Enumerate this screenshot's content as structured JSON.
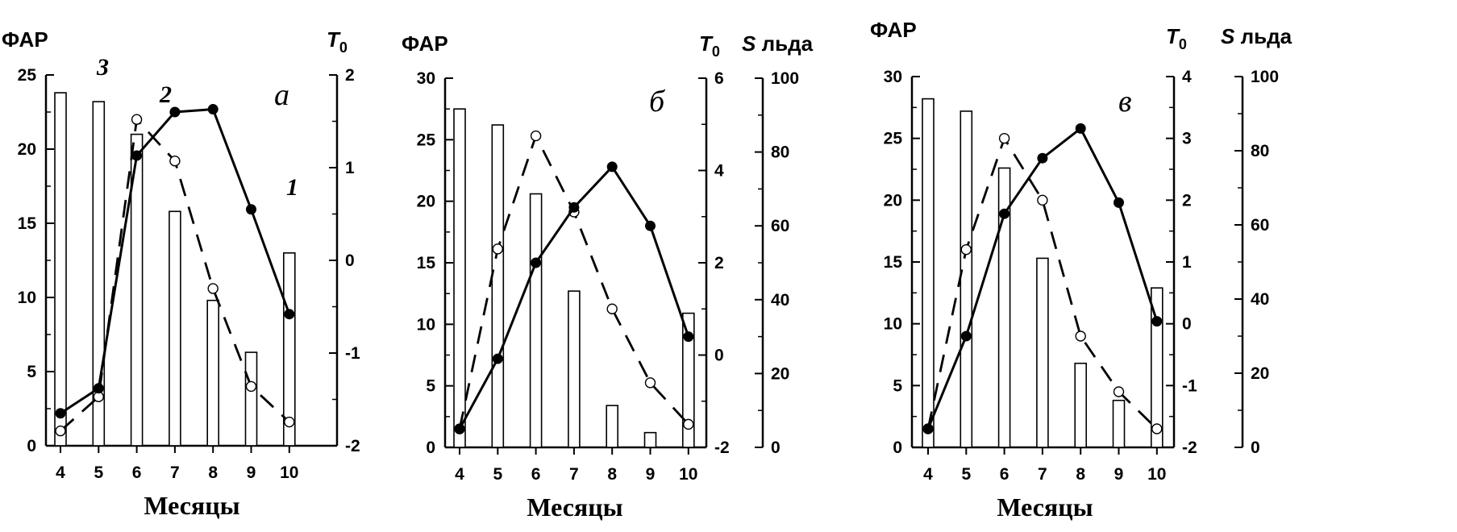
{
  "chart_data": [
    {
      "type": "bar",
      "panel_label": "а",
      "annotations": [
        "3",
        "2",
        "1"
      ],
      "categories": [
        "4",
        "5",
        "6",
        "7",
        "8",
        "9",
        "10"
      ],
      "xlabel": "Месяцы",
      "left_axis": {
        "label": "ФАР",
        "ylim": [
          0,
          25
        ],
        "ticks": [
          "0",
          "5",
          "10",
          "15",
          "20",
          "25"
        ]
      },
      "right_axes": [
        {
          "label": "T",
          "label_sub": "0",
          "ylim": [
            -2,
            2
          ],
          "ticks": [
            "-2",
            "-1",
            "0",
            "1",
            "2"
          ]
        }
      ],
      "series": [
        {
          "style": "bars",
          "axis": "left",
          "values": [
            23.8,
            23.2,
            21.0,
            15.8,
            9.8,
            6.3,
            13.0
          ]
        },
        {
          "style": "dashed-open-circles",
          "axis": "left",
          "values": [
            1.0,
            3.3,
            22.0,
            19.2,
            10.6,
            4.0,
            1.6
          ]
        },
        {
          "style": "solid-filled-circles",
          "axis": "right1",
          "values": [
            -1.65,
            -1.38,
            1.13,
            1.6,
            1.63,
            0.55,
            -0.58
          ]
        }
      ]
    },
    {
      "type": "bar",
      "panel_label": "б",
      "categories": [
        "4",
        "5",
        "6",
        "7",
        "8",
        "9",
        "10"
      ],
      "xlabel": "Месяцы",
      "left_axis": {
        "label": "ФАР",
        "ylim": [
          0,
          30
        ],
        "ticks": [
          "0",
          "5",
          "10",
          "15",
          "20",
          "25",
          "30"
        ]
      },
      "right_axes": [
        {
          "label": "T",
          "label_sub": "0",
          "ylim": [
            -2,
            6
          ],
          "ticks": [
            "-2",
            "0",
            "2",
            "4",
            "6"
          ]
        },
        {
          "label": "S",
          "label_rest": "льда",
          "ylim": [
            0,
            100
          ],
          "ticks": [
            "0",
            "20",
            "40",
            "60",
            "80",
            "100"
          ]
        }
      ],
      "series": [
        {
          "style": "bars",
          "axis": "left",
          "values": [
            27.5,
            26.2,
            20.6,
            12.7,
            3.4,
            1.2,
            10.9
          ]
        },
        {
          "style": "dashed-open-circles",
          "axis": "right1",
          "values": [
            -1.6,
            2.3,
            4.75,
            3.1,
            1.0,
            -0.6,
            -1.5
          ]
        },
        {
          "style": "solid-filled-circles",
          "axis": "right2",
          "values": [
            5,
            24,
            50,
            65,
            76,
            60,
            30
          ]
        }
      ]
    },
    {
      "type": "bar",
      "panel_label": "в",
      "categories": [
        "4",
        "5",
        "6",
        "7",
        "8",
        "9",
        "10"
      ],
      "xlabel": "Месяцы",
      "left_axis": {
        "label": "ФАР",
        "ylim": [
          0,
          30
        ],
        "ticks": [
          "0",
          "5",
          "10",
          "15",
          "20",
          "25",
          "30"
        ]
      },
      "right_axes": [
        {
          "label": "T",
          "label_sub": "0",
          "ylim": [
            -2,
            4
          ],
          "ticks": [
            "-2",
            "-1",
            "0",
            "1",
            "2",
            "3",
            "4"
          ]
        },
        {
          "label": "S",
          "label_rest": "льда",
          "ylim": [
            0,
            100
          ],
          "ticks": [
            "0",
            "20",
            "40",
            "60",
            "80",
            "100"
          ]
        }
      ],
      "series": [
        {
          "style": "bars",
          "axis": "left",
          "values": [
            28.2,
            27.2,
            22.6,
            15.3,
            6.8,
            3.8,
            12.9
          ]
        },
        {
          "style": "dashed-open-circles",
          "axis": "right1",
          "values": [
            -1.7,
            1.2,
            3.0,
            2.0,
            -0.2,
            -1.1,
            -1.7
          ]
        },
        {
          "style": "solid-filled-circles",
          "axis": "right2",
          "values": [
            5,
            30,
            63,
            78,
            86,
            66,
            34
          ]
        }
      ]
    }
  ]
}
